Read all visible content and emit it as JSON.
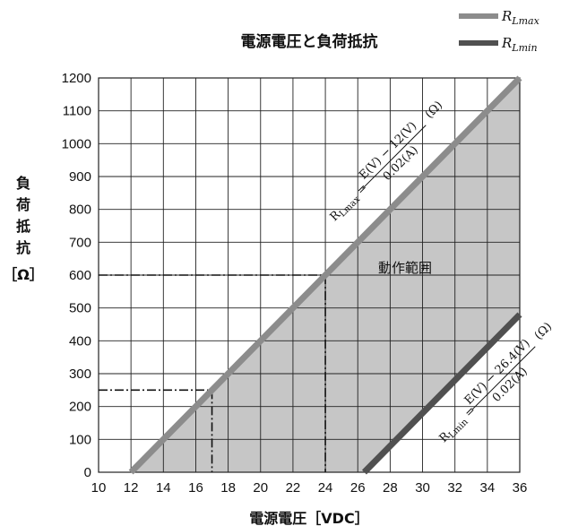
{
  "chart_data": {
    "type": "line",
    "title": "電源電圧と負荷抵抗",
    "xlabel": "電源電圧［VDC］",
    "ylabel": "負荷抵抗［Ω］",
    "xlim": [
      10,
      36
    ],
    "ylim": [
      0,
      1200
    ],
    "x_ticks": [
      10,
      12,
      14,
      16,
      18,
      20,
      22,
      24,
      26,
      28,
      30,
      32,
      34,
      36
    ],
    "y_ticks": [
      0,
      100,
      200,
      300,
      400,
      500,
      600,
      700,
      800,
      900,
      1000,
      1100,
      1200
    ],
    "grid": true,
    "legend_position": "top-right",
    "series": [
      {
        "name": "R_Lmax",
        "legend_main": "R",
        "legend_sub": "Lmax",
        "color": "#8c8c8c",
        "x": [
          12,
          36
        ],
        "y": [
          0,
          1200
        ]
      },
      {
        "name": "R_Lmin",
        "legend_main": "R",
        "legend_sub": "Lmin",
        "color": "#505050",
        "x": [
          26.4,
          36
        ],
        "y": [
          0,
          480
        ]
      }
    ],
    "region": {
      "label": "動作範囲",
      "color": "#c6c6c6"
    },
    "annotations": {
      "formula_max": {
        "lhs": "R",
        "lhs_sub": "Lmax",
        "numerator": "E(V) − 12(V)",
        "denominator": "0.02(A)",
        "unit": "(Ω)"
      },
      "formula_min": {
        "lhs": "R",
        "lhs_sub": "Lmin",
        "numerator": "E(V) − 26.4(V)",
        "denominator": "0.02(A)",
        "unit": "(Ω)"
      }
    },
    "reference_points": [
      {
        "x": 17,
        "y": 250
      },
      {
        "x": 24,
        "y": 600
      }
    ]
  }
}
